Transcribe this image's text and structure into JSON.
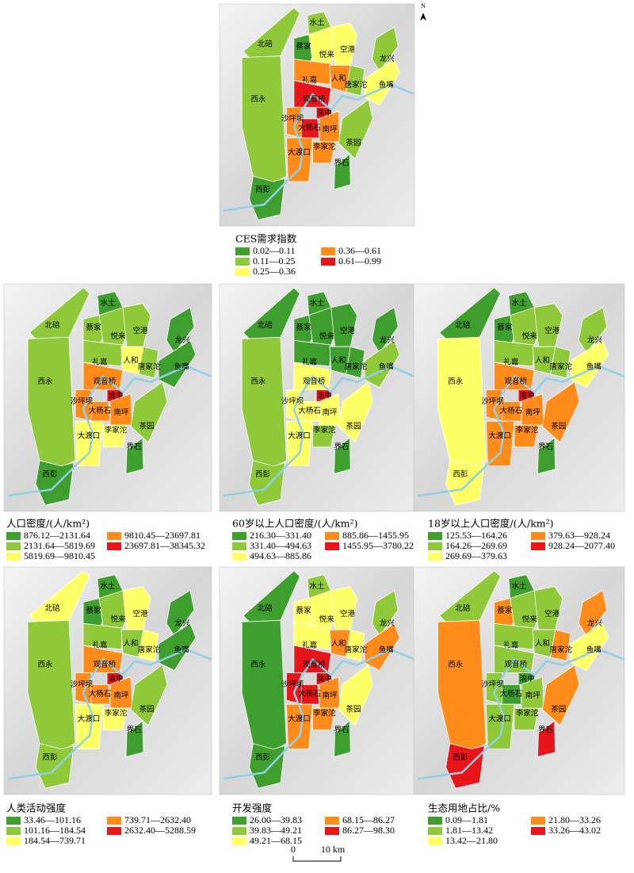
{
  "north": "N",
  "district_labels": [
    "北碚",
    "西永",
    "西彭",
    "水土",
    "蔡家",
    "悦来",
    "空港",
    "龙兴",
    "礼嘉",
    "人和",
    "唐家沱",
    "鱼嘴",
    "观音桥",
    "沙坪坝",
    "渝中",
    "大杨石",
    "南坪",
    "茶园",
    "大渡口",
    "李家沱",
    "界石"
  ],
  "class_colors": [
    "#3f9f2e",
    "#8fc93a",
    "#ffff66",
    "#ff8c1a",
    "#e8161a"
  ],
  "panels": [
    {
      "legend_title": "CES需求指数",
      "legend_items": [
        "0.02—0.11",
        "0.11—0.25",
        "0.25—0.36",
        "0.36—0.61",
        "0.61—0.99"
      ],
      "district_classes": [
        1,
        1,
        0,
        1,
        0,
        2,
        2,
        1,
        3,
        3,
        1,
        2,
        4,
        3,
        4,
        4,
        3,
        1,
        3,
        3,
        0
      ]
    },
    {
      "legend_title": "人口密度/(人/km²)",
      "legend_items": [
        "876.12—2131.64",
        "2131.64—5819.69",
        "5819.69—9810.45",
        "9810.45—23697.81",
        "23697.81—38345.32"
      ],
      "district_classes": [
        1,
        1,
        0,
        0,
        1,
        1,
        1,
        0,
        1,
        2,
        1,
        0,
        3,
        3,
        4,
        3,
        3,
        1,
        2,
        2,
        0
      ]
    },
    {
      "legend_title": "60岁以上人口密度/(人/km²)",
      "legend_items": [
        "216.30—331.40",
        "331.40—494.63",
        "494.63—885.86",
        "885.86—1455.95",
        "1455.95—3780.22"
      ],
      "district_classes": [
        0,
        1,
        1,
        0,
        0,
        0,
        0,
        0,
        0,
        0,
        0,
        1,
        2,
        2,
        4,
        2,
        2,
        2,
        2,
        1,
        0
      ]
    },
    {
      "legend_title": "18岁以上人口密度/(人/km²)",
      "legend_items": [
        "125.53—164.26",
        "164.26—269.69",
        "269.69—379.63",
        "379.63—928.24",
        "928.24—2077.40"
      ],
      "district_classes": [
        0,
        2,
        2,
        0,
        0,
        1,
        1,
        1,
        1,
        1,
        1,
        2,
        3,
        3,
        4,
        3,
        3,
        3,
        3,
        3,
        0
      ]
    },
    {
      "legend_title": "人类活动强度",
      "legend_items": [
        "33.46—101.16",
        "101.16—184.54",
        "184.54—739.71",
        "739.71—2632.40",
        "2632.40—5288.59"
      ],
      "district_classes": [
        2,
        1,
        1,
        0,
        0,
        1,
        2,
        0,
        1,
        1,
        2,
        0,
        3,
        3,
        4,
        3,
        3,
        1,
        2,
        2,
        0
      ]
    },
    {
      "legend_title": "开发强度",
      "legend_items": [
        "26.00—39.83",
        "39.83—49.21",
        "49.21—68.15",
        "68.15—86.27",
        "86.27—98.30"
      ],
      "district_classes": [
        0,
        0,
        0,
        1,
        2,
        2,
        2,
        1,
        2,
        3,
        2,
        3,
        4,
        4,
        4,
        4,
        3,
        2,
        3,
        3,
        0
      ]
    },
    {
      "legend_title": "生态用地占比/%",
      "legend_items": [
        "0.09—1.81",
        "1.81—13.42",
        "13.42—21.80",
        "21.80—33.26",
        "33.26—43.02"
      ],
      "district_classes": [
        1,
        3,
        4,
        0,
        3,
        1,
        1,
        3,
        1,
        1,
        3,
        2,
        1,
        1,
        0,
        0,
        1,
        3,
        1,
        1,
        4
      ]
    }
  ],
  "scale_bar": {
    "zero": "0",
    "label": "10 km"
  }
}
